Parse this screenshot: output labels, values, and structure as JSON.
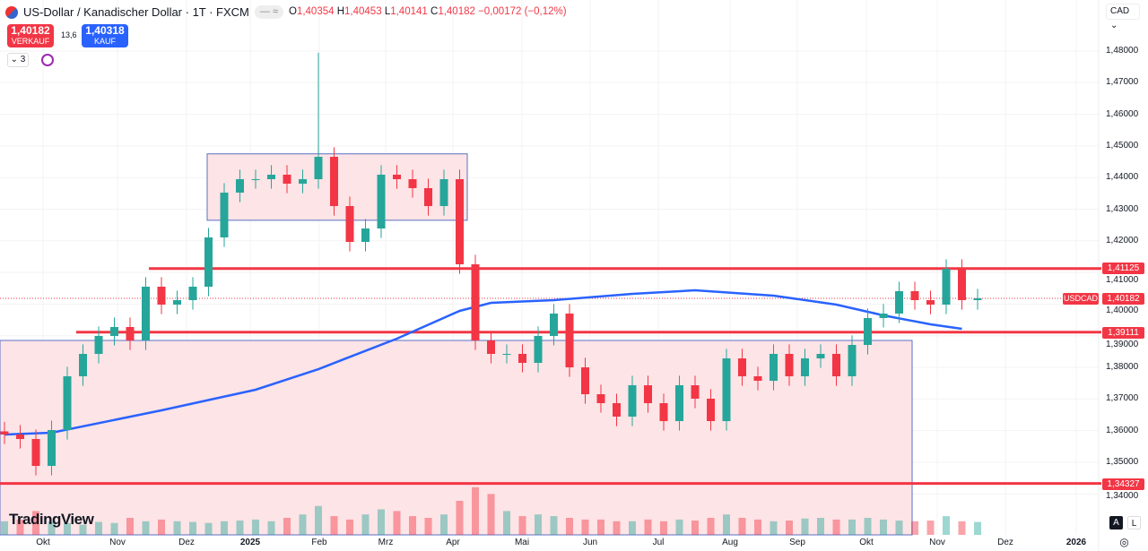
{
  "header": {
    "title": "US-Dollar / Kanadischer Dollar · 1T · FXCM",
    "o_label": "O",
    "o": "1,40354",
    "h_label": "H",
    "h": "1,40453",
    "l_label": "L",
    "l": "1,40141",
    "c_label": "C",
    "c": "1,40182",
    "change": "−0,00172 (−0,12%)"
  },
  "trade": {
    "sell_price": "1,40182",
    "sell_label": "VERKAUF",
    "spread": "13,6",
    "buy_price": "1,40318",
    "buy_label": "KAUF",
    "indicator_count": "3"
  },
  "currency": "CAD",
  "logo": "TradingView",
  "scale_buttons": {
    "auto": "A",
    "log": "L"
  },
  "price_axis": [
    "1,48000",
    "1,47000",
    "1,46000",
    "1,45000",
    "1,44000",
    "1,43000",
    "1,42000",
    "1,41000",
    "1,40000",
    "1,39000",
    "1,38000",
    "1,37000",
    "1,36000",
    "1,35000",
    "1,34000"
  ],
  "time_axis": [
    "Okt",
    "Nov",
    "Dez",
    "2025",
    "Feb",
    "Mrz",
    "Apr",
    "Mai",
    "Jun",
    "Jul",
    "Aug",
    "Sep",
    "Okt",
    "Nov",
    "Dez",
    "2026"
  ],
  "price_tags": {
    "symbol": "USDCAD",
    "last": "1,40182",
    "levels": [
      "1,41125",
      "1,39111",
      "1,34327"
    ]
  },
  "colors": {
    "up": "#26a69a",
    "down": "#f23645",
    "ma": "#2962ff",
    "level": "#f23645",
    "zone_fill": "#fde4e6",
    "zone_border": "#5b6fc4"
  },
  "chart_data": {
    "type": "candlestick",
    "interval": "1T",
    "symbol": "USDCAD",
    "ylim": [
      1.338,
      1.482
    ],
    "closes": [
      1.35875,
      1.35734,
      1.34884,
      1.36017,
      1.37717,
      1.38425,
      1.38992,
      1.39275,
      1.3885,
      1.4055,
      1.39983,
      1.40125,
      1.4055,
      1.42108,
      1.43524,
      1.43949,
      1.43949,
      1.44091,
      1.43807,
      1.43949,
      1.44657,
      1.43099,
      1.41966,
      1.42391,
      1.44091,
      1.43949,
      1.43666,
      1.43099,
      1.43949,
      1.41258,
      1.3885,
      1.38425,
      1.38425,
      1.38142,
      1.38992,
      1.397,
      1.38,
      1.3715,
      1.36867,
      1.36442,
      1.37433,
      1.36867,
      1.363,
      1.37433,
      1.37008,
      1.363,
      1.38283,
      1.37717,
      1.37575,
      1.38425,
      1.37717,
      1.38283,
      1.38425,
      1.37717,
      1.38708,
      1.39558,
      1.397,
      1.40408,
      1.40125,
      1.39983,
      1.41116,
      1.40125,
      1.40182
    ],
    "spike_high": 1.4795,
    "moving_average": [
      [
        0,
        1.35875
      ],
      [
        3,
        1.35932
      ],
      [
        10,
        1.3664
      ],
      [
        16,
        1.37292
      ],
      [
        20,
        1.37943
      ],
      [
        25,
        1.38907
      ],
      [
        29,
        1.39785
      ],
      [
        31,
        1.4004
      ],
      [
        35,
        1.40125
      ],
      [
        40,
        1.40323
      ],
      [
        44,
        1.40436
      ],
      [
        49,
        1.40266
      ],
      [
        53,
        1.39983
      ],
      [
        56,
        1.39643
      ],
      [
        59,
        1.3936
      ],
      [
        61,
        1.39218
      ]
    ],
    "horizontal_levels": [
      1.41125,
      1.39111,
      1.34327
    ],
    "zones": [
      {
        "top": 1.4475,
        "bottom": 1.4265
      },
      {
        "top": 1.3885,
        "bottom": 1.338
      }
    ],
    "volume_relative": [
      40,
      45,
      70,
      40,
      35,
      30,
      38,
      35,
      50,
      40,
      45,
      40,
      38,
      35,
      40,
      42,
      45,
      40,
      50,
      60,
      85,
      55,
      45,
      60,
      75,
      70,
      55,
      50,
      60,
      100,
      140,
      120,
      70,
      55,
      60,
      55,
      50,
      45,
      45,
      40,
      40,
      45,
      40,
      45,
      42,
      50,
      60,
      50,
      45,
      40,
      42,
      48,
      50,
      45,
      45,
      50,
      45,
      42,
      40,
      42,
      55,
      40,
      38
    ]
  }
}
